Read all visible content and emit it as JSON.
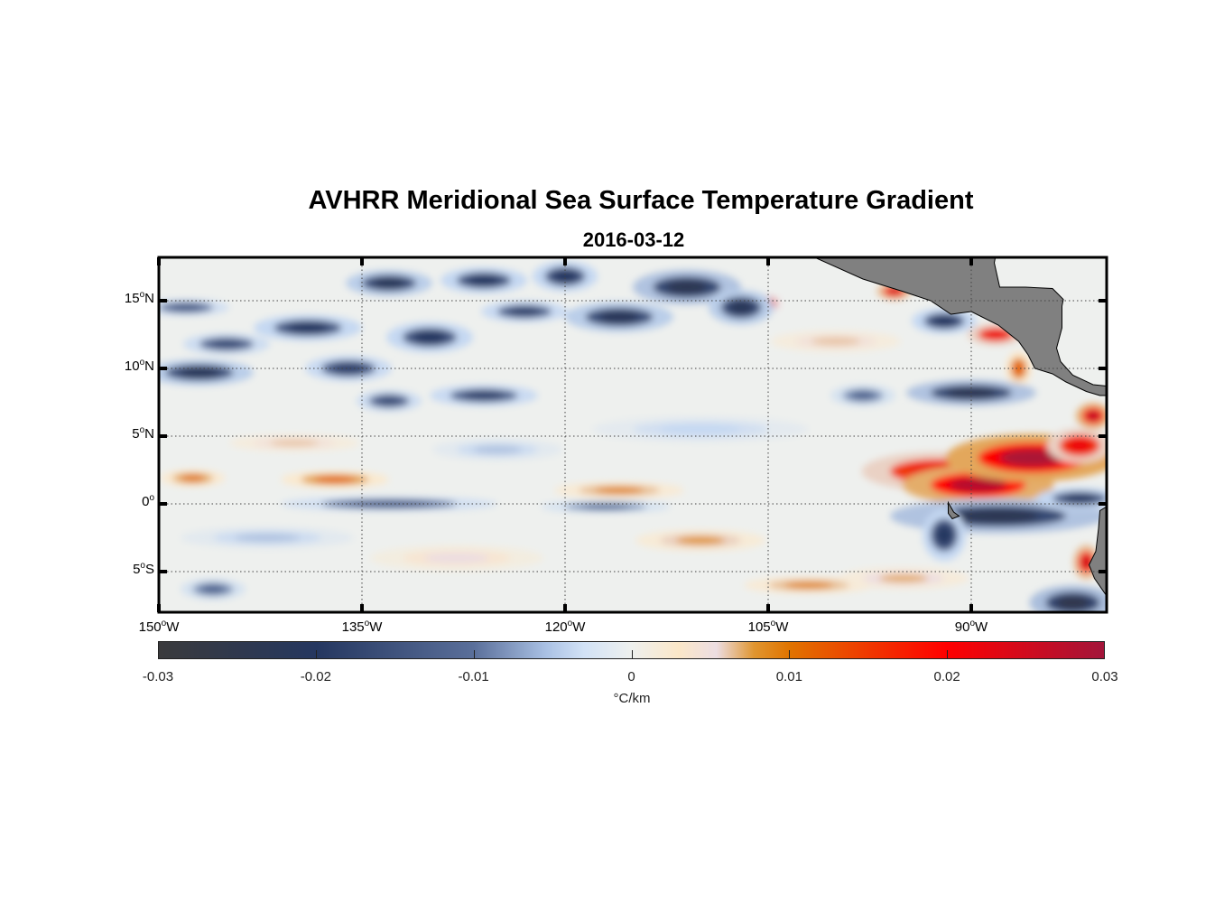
{
  "title": "AVHRR Meridional Sea Surface Temperature Gradient",
  "subtitle": "2016-03-12",
  "chart_data": {
    "type": "heatmap",
    "lon_range": [
      -150,
      -80
    ],
    "lat_range": [
      -8,
      18.2
    ],
    "y_ticks": [
      {
        "value": 15,
        "deg": "15",
        "hemi": "N"
      },
      {
        "value": 10,
        "deg": "10",
        "hemi": "N"
      },
      {
        "value": 5,
        "deg": "5",
        "hemi": "N"
      },
      {
        "value": 0,
        "deg": "0",
        "hemi": ""
      },
      {
        "value": -5,
        "deg": "5",
        "hemi": "S"
      }
    ],
    "x_ticks": [
      {
        "value": -150,
        "deg": "150",
        "hemi": "W"
      },
      {
        "value": -135,
        "deg": "135",
        "hemi": "W"
      },
      {
        "value": -120,
        "deg": "120",
        "hemi": "W"
      },
      {
        "value": -105,
        "deg": "105",
        "hemi": "W"
      },
      {
        "value": -90,
        "deg": "90",
        "hemi": "W"
      }
    ],
    "grid": true,
    "colorbar": {
      "range": [
        -0.03,
        0.03
      ],
      "ticks": [
        "-0.03",
        "-0.02",
        "-0.01",
        "0",
        "0.01",
        "0.02",
        "0.03"
      ],
      "tick_values": [
        -0.03,
        -0.02,
        -0.01,
        0,
        0.01,
        0.02,
        0.03
      ],
      "unit": "°C/km"
    },
    "features": [
      {
        "lon": -92.5,
        "lat": 2.4,
        "value": 0.022,
        "dlon": 3.5,
        "dlat": 0.9
      },
      {
        "lon": -89.5,
        "lat": 1.4,
        "value": 0.028,
        "dlon": 3.5,
        "dlat": 0.9
      },
      {
        "lon": -85.5,
        "lat": 3.4,
        "value": 0.029,
        "dlon": 4,
        "dlat": 1.1
      },
      {
        "lon": -82,
        "lat": 4.3,
        "value": 0.022,
        "dlon": 1.5,
        "dlat": 0.8
      },
      {
        "lon": -81,
        "lat": 6.5,
        "value": 0.027,
        "dlon": 0.8,
        "dlat": 0.6
      },
      {
        "lon": -81.5,
        "lat": -4.3,
        "value": 0.025,
        "dlon": 0.6,
        "dlat": 0.8
      },
      {
        "lon": -88.2,
        "lat": 12.5,
        "value": 0.022,
        "dlon": 1.3,
        "dlat": 0.5
      },
      {
        "lon": -86.5,
        "lat": 10,
        "value": 0.012,
        "dlon": 0.6,
        "dlat": 0.8
      },
      {
        "lon": -95.7,
        "lat": 15.7,
        "value": 0.025,
        "dlon": 0.8,
        "dlat": 0.4
      },
      {
        "lon": -105,
        "lat": 14.8,
        "value": 0.02,
        "dlon": 0.6,
        "dlat": 0.4
      },
      {
        "lon": -137,
        "lat": 1.8,
        "value": 0.011,
        "dlon": 2.5,
        "dlat": 0.4
      },
      {
        "lon": -147.5,
        "lat": 1.9,
        "value": 0.01,
        "dlon": 1.5,
        "dlat": 0.4
      },
      {
        "lon": -116,
        "lat": 1,
        "value": 0.009,
        "dlon": 3,
        "dlat": 0.4
      },
      {
        "lon": -110,
        "lat": -2.7,
        "value": 0.008,
        "dlon": 3,
        "dlat": 0.5
      },
      {
        "lon": -102,
        "lat": -6,
        "value": 0.009,
        "dlon": 3,
        "dlat": 0.4
      },
      {
        "lon": -95,
        "lat": -5.5,
        "value": 0.007,
        "dlon": 3,
        "dlat": 0.5
      },
      {
        "lon": -88,
        "lat": -0.9,
        "value": -0.024,
        "dlon": 5,
        "dlat": 0.8
      },
      {
        "lon": -92,
        "lat": -2.3,
        "value": -0.02,
        "dlon": 1,
        "dlat": 1.2
      },
      {
        "lon": -82,
        "lat": 0.4,
        "value": -0.02,
        "dlon": 2,
        "dlat": 0.5
      },
      {
        "lon": -90,
        "lat": 8.2,
        "value": -0.024,
        "dlon": 3,
        "dlat": 0.6
      },
      {
        "lon": -82.5,
        "lat": -7.3,
        "value": -0.025,
        "dlon": 2,
        "dlat": 0.8
      },
      {
        "lon": -133,
        "lat": 0,
        "value": -0.014,
        "dlon": 5,
        "dlat": 0.35
      },
      {
        "lon": -117,
        "lat": -0.2,
        "value": -0.012,
        "dlon": 3,
        "dlat": 0.3
      },
      {
        "lon": -133,
        "lat": 16.3,
        "value": -0.022,
        "dlon": 2,
        "dlat": 0.6
      },
      {
        "lon": -126,
        "lat": 16.5,
        "value": -0.02,
        "dlon": 2,
        "dlat": 0.6
      },
      {
        "lon": -120,
        "lat": 16.8,
        "value": -0.02,
        "dlon": 1.5,
        "dlat": 0.7
      },
      {
        "lon": -111,
        "lat": 16,
        "value": -0.024,
        "dlon": 2.5,
        "dlat": 0.8
      },
      {
        "lon": -107,
        "lat": 14.5,
        "value": -0.022,
        "dlon": 1.5,
        "dlat": 0.8
      },
      {
        "lon": -116,
        "lat": 13.8,
        "value": -0.022,
        "dlon": 2.5,
        "dlat": 0.7
      },
      {
        "lon": -123,
        "lat": 14.2,
        "value": -0.018,
        "dlon": 2,
        "dlat": 0.5
      },
      {
        "lon": -139,
        "lat": 13,
        "value": -0.02,
        "dlon": 2.5,
        "dlat": 0.6
      },
      {
        "lon": -145,
        "lat": 11.8,
        "value": -0.016,
        "dlon": 2,
        "dlat": 0.5
      },
      {
        "lon": -130,
        "lat": 12.3,
        "value": -0.02,
        "dlon": 2,
        "dlat": 0.7
      },
      {
        "lon": -147,
        "lat": 9.7,
        "value": -0.022,
        "dlon": 2.5,
        "dlat": 0.6
      },
      {
        "lon": -136,
        "lat": 10,
        "value": -0.018,
        "dlon": 2,
        "dlat": 0.6
      },
      {
        "lon": -133,
        "lat": 7.6,
        "value": -0.016,
        "dlon": 1.5,
        "dlat": 0.5
      },
      {
        "lon": -126,
        "lat": 8,
        "value": -0.018,
        "dlon": 2.5,
        "dlat": 0.5
      },
      {
        "lon": -148,
        "lat": 14.5,
        "value": -0.014,
        "dlon": 2,
        "dlat": 0.4
      },
      {
        "lon": -92,
        "lat": 13.5,
        "value": -0.02,
        "dlon": 1.5,
        "dlat": 0.6
      },
      {
        "lon": -98,
        "lat": 8,
        "value": -0.012,
        "dlon": 1.5,
        "dlat": 0.5
      },
      {
        "lon": -146,
        "lat": -6.3,
        "value": -0.012,
        "dlon": 1.5,
        "dlat": 0.5
      },
      {
        "lon": -140,
        "lat": 4.5,
        "value": 0.006,
        "dlon": 3,
        "dlat": 0.4
      },
      {
        "lon": -125,
        "lat": 4,
        "value": -0.006,
        "dlon": 3,
        "dlat": 0.5
      },
      {
        "lon": -100,
        "lat": 12,
        "value": 0.006,
        "dlon": 3,
        "dlat": 0.5
      },
      {
        "lon": -110,
        "lat": 5.5,
        "value": -0.005,
        "dlon": 5,
        "dlat": 0.6
      },
      {
        "lon": -128,
        "lat": -4,
        "value": 0.005,
        "dlon": 4,
        "dlat": 0.6
      },
      {
        "lon": -142,
        "lat": -2.5,
        "value": -0.006,
        "dlon": 4,
        "dlat": 0.5
      }
    ]
  }
}
